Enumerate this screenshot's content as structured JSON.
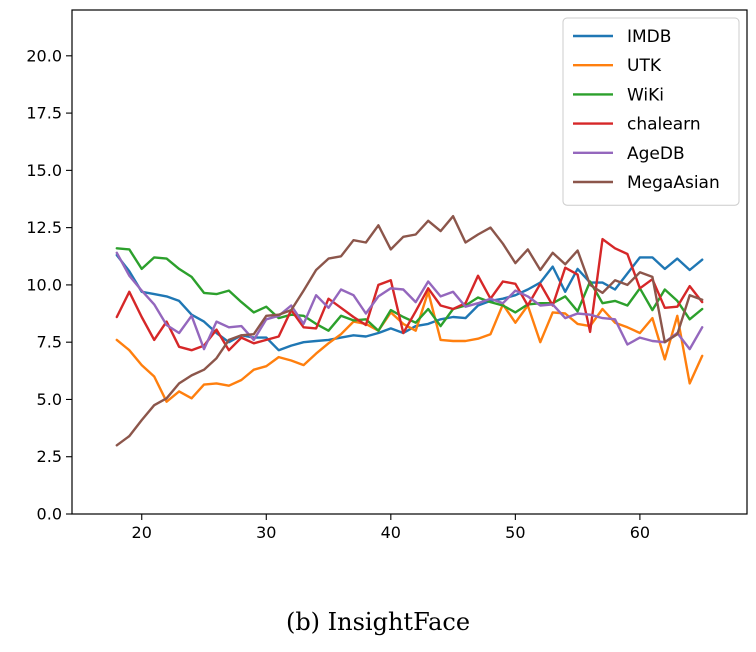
{
  "caption": "(b) InsightFace",
  "chart_data": {
    "type": "line",
    "title": "",
    "xlabel": "",
    "ylabel": "",
    "xlim": [
      14.4,
      68.6
    ],
    "ylim": [
      0,
      22
    ],
    "x_ticks": [
      20,
      30,
      40,
      50,
      60
    ],
    "y_ticks": [
      0.0,
      2.5,
      5.0,
      7.5,
      10.0,
      12.5,
      15.0,
      17.5,
      20.0
    ],
    "x": [
      18,
      19,
      20,
      21,
      22,
      23,
      24,
      25,
      26,
      27,
      28,
      29,
      30,
      31,
      32,
      33,
      34,
      35,
      36,
      37,
      38,
      39,
      40,
      41,
      42,
      43,
      44,
      45,
      46,
      47,
      48,
      49,
      50,
      51,
      52,
      53,
      54,
      55,
      56,
      57,
      58,
      59,
      60,
      61,
      62,
      63,
      64,
      65
    ],
    "legend_position": "upper right",
    "series": [
      {
        "name": "IMDB",
        "color": "#1f77b4",
        "values": [
          11.3,
          10.6,
          9.7,
          9.6,
          9.5,
          9.3,
          8.7,
          8.4,
          7.9,
          7.5,
          7.8,
          7.7,
          7.7,
          7.15,
          7.35,
          7.5,
          7.55,
          7.6,
          7.7,
          7.8,
          7.75,
          7.9,
          8.1,
          7.9,
          8.2,
          8.3,
          8.5,
          8.6,
          8.55,
          9.1,
          9.3,
          9.4,
          9.55,
          9.8,
          10.1,
          10.8,
          9.7,
          10.7,
          10.1,
          10.1,
          9.8,
          10.5,
          11.2,
          11.2,
          10.7,
          11.15,
          10.65,
          11.1
        ]
      },
      {
        "name": "UTK",
        "color": "#ff7f0e",
        "values": [
          7.6,
          7.15,
          6.5,
          6.0,
          4.9,
          5.35,
          5.05,
          5.65,
          5.7,
          5.6,
          5.85,
          6.3,
          6.45,
          6.85,
          6.7,
          6.5,
          7.0,
          7.45,
          7.85,
          8.4,
          8.3,
          8.0,
          8.8,
          8.3,
          8.0,
          9.7,
          7.6,
          7.55,
          7.55,
          7.65,
          7.85,
          9.15,
          8.35,
          9.1,
          7.5,
          8.8,
          8.75,
          8.3,
          8.2,
          8.95,
          8.35,
          8.15,
          7.9,
          8.55,
          6.75,
          8.65,
          5.7,
          6.9
        ]
      },
      {
        "name": "WiKi",
        "color": "#2ca02c",
        "values": [
          11.6,
          11.55,
          10.7,
          11.2,
          11.15,
          10.7,
          10.35,
          9.65,
          9.6,
          9.75,
          9.25,
          8.8,
          9.05,
          8.55,
          8.7,
          8.65,
          8.3,
          8.0,
          8.65,
          8.45,
          8.5,
          8.0,
          8.9,
          8.6,
          8.35,
          8.95,
          8.2,
          8.95,
          9.1,
          9.45,
          9.25,
          9.1,
          8.8,
          9.15,
          9.2,
          9.2,
          9.5,
          8.85,
          10.15,
          9.2,
          9.3,
          9.1,
          9.85,
          8.9,
          9.8,
          9.3,
          8.5,
          8.95
        ]
      },
      {
        "name": "chalearn",
        "color": "#d62728",
        "values": [
          8.6,
          9.7,
          8.6,
          7.6,
          8.4,
          7.3,
          7.15,
          7.35,
          8.05,
          7.15,
          7.7,
          7.45,
          7.6,
          7.75,
          8.9,
          8.15,
          8.1,
          9.4,
          9.0,
          8.6,
          8.25,
          10.0,
          10.2,
          7.9,
          8.85,
          9.85,
          9.1,
          8.95,
          9.2,
          10.4,
          9.4,
          10.15,
          10.05,
          9.1,
          10.05,
          9.1,
          10.75,
          10.45,
          7.95,
          12.0,
          11.6,
          11.35,
          9.85,
          10.25,
          9.0,
          9.05,
          9.95,
          9.25
        ]
      },
      {
        "name": "AgeDB",
        "color": "#9467bd",
        "values": [
          11.4,
          10.4,
          9.75,
          9.15,
          8.25,
          7.9,
          8.65,
          7.2,
          8.4,
          8.15,
          8.2,
          7.6,
          8.5,
          8.65,
          9.1,
          8.3,
          9.55,
          9.0,
          9.8,
          9.55,
          8.75,
          9.5,
          9.85,
          9.8,
          9.25,
          10.15,
          9.5,
          9.7,
          9.05,
          9.2,
          9.4,
          9.2,
          9.75,
          9.5,
          9.1,
          9.15,
          8.55,
          8.75,
          8.7,
          8.55,
          8.5,
          7.4,
          7.7,
          7.55,
          7.5,
          7.9,
          7.2,
          8.15
        ]
      },
      {
        "name": "MegaAsian",
        "color": "#8c564b",
        "values": [
          3.0,
          3.4,
          4.1,
          4.75,
          5.05,
          5.7,
          6.05,
          6.3,
          6.8,
          7.6,
          7.8,
          7.85,
          8.65,
          8.7,
          8.9,
          9.75,
          10.65,
          11.15,
          11.25,
          11.95,
          11.85,
          12.6,
          11.55,
          12.1,
          12.2,
          12.8,
          12.35,
          13.0,
          11.85,
          12.2,
          12.5,
          11.8,
          10.95,
          11.55,
          10.65,
          11.4,
          10.9,
          11.5,
          10.0,
          9.65,
          10.2,
          10.0,
          10.55,
          10.35,
          7.5,
          7.85,
          9.55,
          9.35
        ]
      }
    ]
  }
}
